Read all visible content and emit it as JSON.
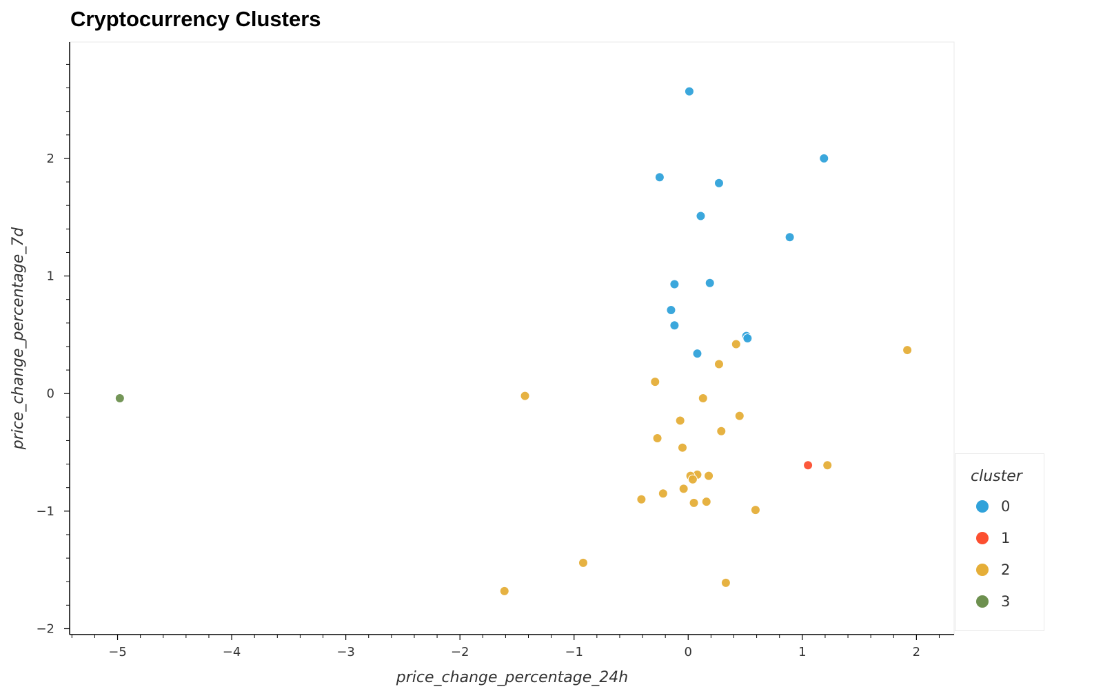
{
  "chart_data": {
    "type": "scatter",
    "title": "Cryptocurrency Clusters",
    "xlabel": "price_change_percentage_24h",
    "ylabel": "price_change_percentage_7d",
    "xlim": [
      -5.42,
      2.33
    ],
    "ylim": [
      -2.05,
      2.99
    ],
    "x_ticks": [
      -5,
      -4,
      -3,
      -2,
      -1,
      0,
      1,
      2
    ],
    "y_ticks": [
      -2,
      -1,
      0,
      1,
      2
    ],
    "grid": false,
    "legend": {
      "title": "cluster",
      "position": "right"
    },
    "series": [
      {
        "name": "0",
        "color": "#30a2da",
        "points": [
          [
            0.01,
            2.57
          ],
          [
            1.19,
            2.0
          ],
          [
            -0.25,
            1.84
          ],
          [
            0.27,
            1.79
          ],
          [
            0.11,
            1.51
          ],
          [
            0.89,
            1.33
          ],
          [
            -0.12,
            0.93
          ],
          [
            0.19,
            0.94
          ],
          [
            -0.15,
            0.71
          ],
          [
            -0.12,
            0.58
          ],
          [
            0.51,
            0.49
          ],
          [
            0.52,
            0.47
          ],
          [
            0.08,
            0.34
          ]
        ]
      },
      {
        "name": "1",
        "color": "#fc4f30",
        "points": [
          [
            1.05,
            -0.61
          ]
        ]
      },
      {
        "name": "2",
        "color": "#e5ae38",
        "points": [
          [
            1.92,
            0.37
          ],
          [
            0.42,
            0.42
          ],
          [
            0.27,
            0.25
          ],
          [
            -0.29,
            0.1
          ],
          [
            -1.43,
            -0.02
          ],
          [
            0.13,
            -0.04
          ],
          [
            0.45,
            -0.19
          ],
          [
            -0.07,
            -0.23
          ],
          [
            0.29,
            -0.32
          ],
          [
            -0.27,
            -0.38
          ],
          [
            -0.05,
            -0.46
          ],
          [
            1.22,
            -0.61
          ],
          [
            0.08,
            -0.69
          ],
          [
            0.18,
            -0.7
          ],
          [
            0.02,
            -0.7
          ],
          [
            0.04,
            -0.73
          ],
          [
            -0.04,
            -0.81
          ],
          [
            -0.22,
            -0.85
          ],
          [
            -0.41,
            -0.9
          ],
          [
            0.05,
            -0.93
          ],
          [
            0.16,
            -0.92
          ],
          [
            0.59,
            -0.99
          ],
          [
            -0.92,
            -1.44
          ],
          [
            0.33,
            -1.61
          ],
          [
            -1.61,
            -1.68
          ]
        ]
      },
      {
        "name": "3",
        "color": "#6d904f",
        "points": [
          [
            -4.98,
            -0.04
          ]
        ]
      }
    ]
  }
}
